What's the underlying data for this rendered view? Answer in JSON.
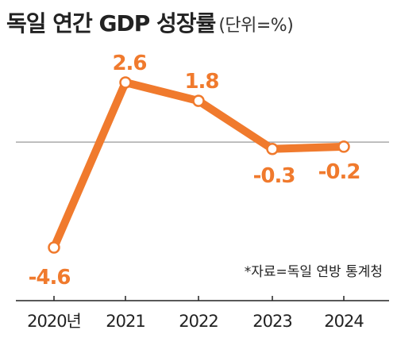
{
  "title": {
    "main": "독일 연간 GDP 성장률",
    "unit": "(단위=%)"
  },
  "source": "*자료=독일 연방 통계청",
  "colors": {
    "line": "#f07a2d",
    "zero_line": "#9a9a9a",
    "axis": "#222222",
    "marker_fill": "#ffffff"
  },
  "chart_data": {
    "type": "line",
    "title": "독일 연간 GDP 성장률",
    "unit": "(단위=%)",
    "categories": [
      "2020년",
      "2021",
      "2022",
      "2023",
      "2024"
    ],
    "series": [
      {
        "values": [
          -4.6,
          2.6,
          1.8,
          -0.3,
          -0.2
        ],
        "labels": [
          "-4.6",
          "2.6",
          "1.8",
          "-0.3",
          "-0.2"
        ]
      }
    ],
    "ylim": [
      -6,
      3.5
    ],
    "grid": false,
    "reference_line": 0,
    "xlabel": "",
    "ylabel": ""
  }
}
